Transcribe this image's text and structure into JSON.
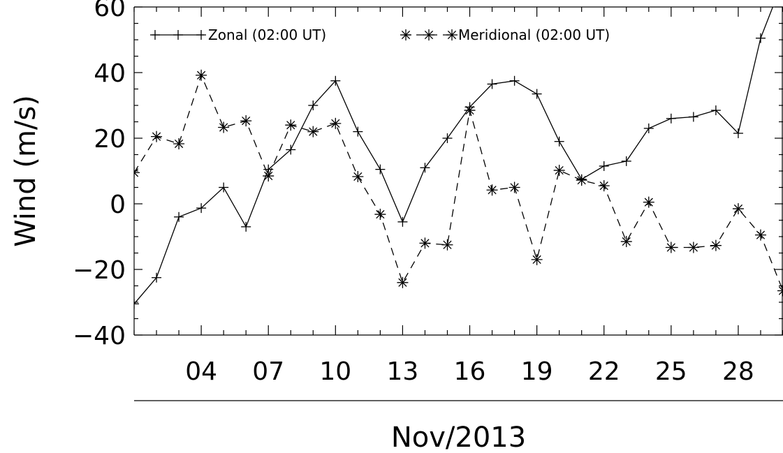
{
  "chart_data": {
    "type": "line",
    "ylabel": "Wind (m/s)",
    "xlabel": "Nov/2013",
    "ylim": [
      -40,
      60
    ],
    "xlim": [
      1,
      30
    ],
    "y_ticks": [
      -40,
      -20,
      0,
      20,
      40,
      60
    ],
    "y_tick_labels": [
      "−40",
      "−20",
      "0",
      "20",
      "40",
      "60"
    ],
    "x_ticks": [
      4,
      7,
      10,
      13,
      16,
      19,
      22,
      25,
      28
    ],
    "x_tick_labels": [
      "04",
      "07",
      "10",
      "13",
      "16",
      "19",
      "22",
      "25",
      "28"
    ],
    "legend_position": "top",
    "series": [
      {
        "name": "Zonal (02:00 UT)",
        "line_style": "solid",
        "marker": "plus",
        "x": [
          1,
          2,
          3,
          4,
          5,
          6,
          7,
          8,
          9,
          10,
          11,
          12,
          13,
          14,
          15,
          16,
          17,
          18,
          19,
          20,
          21,
          22,
          23,
          24,
          25,
          26,
          27,
          28,
          29,
          30
        ],
        "values": [
          -30.5,
          -22.5,
          -4,
          -1.3,
          5,
          -7,
          10.5,
          16.5,
          30,
          37.5,
          22,
          10.5,
          -5.5,
          11,
          20,
          29.5,
          36.5,
          37.5,
          33.5,
          19,
          7.5,
          11.5,
          13,
          23,
          26,
          26.5,
          28.5,
          21.5,
          50.5,
          68
        ]
      },
      {
        "name": "Meridional (02:00 UT)",
        "line_style": "dashed",
        "marker": "asterisk",
        "x": [
          1,
          2,
          3,
          4,
          5,
          6,
          7,
          8,
          9,
          10,
          11,
          12,
          13,
          14,
          15,
          16,
          17,
          18,
          19,
          20,
          21,
          22,
          23,
          24,
          25,
          26,
          27,
          28,
          29,
          30
        ],
        "values": [
          9.5,
          20.5,
          18.3,
          39.2,
          23.3,
          25.3,
          8.5,
          24,
          22,
          24.5,
          8.3,
          -3.2,
          -24,
          -12,
          -12.5,
          28.5,
          4.2,
          5,
          -17,
          10.2,
          7.2,
          5.5,
          -11.5,
          0.5,
          -13.3,
          -13.3,
          -12.7,
          -1.5,
          -9.5,
          -26.5
        ]
      }
    ]
  }
}
